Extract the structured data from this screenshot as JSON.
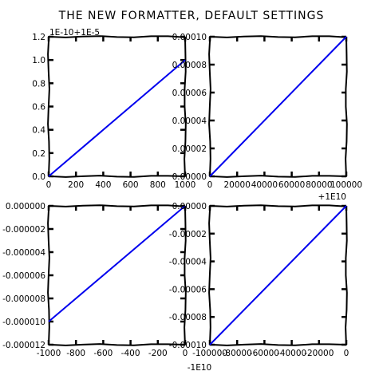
{
  "figure": {
    "title": "THE NEW FORMATTER, DEFAULT SETTINGS"
  },
  "chart_data": [
    {
      "type": "line",
      "panel": "top-left",
      "xlim": [
        0,
        1000
      ],
      "ylim": [
        0,
        1.2
      ],
      "x_ticks": [
        "0",
        "200",
        "400",
        "600",
        "800",
        "1000"
      ],
      "y_ticks": [
        "0.0",
        "0.2",
        "0.4",
        "0.6",
        "0.8",
        "1.0",
        "1.2"
      ],
      "y_offset_label": "1E-10+1E-5",
      "series": [
        {
          "x": [
            0,
            1000
          ],
          "y": [
            0,
            1.0
          ],
          "color": "#0000ee"
        }
      ]
    },
    {
      "type": "line",
      "panel": "top-right",
      "xlim": [
        0,
        100000
      ],
      "ylim": [
        0,
        0.0001
      ],
      "x_ticks": [
        "0",
        "20000",
        "40000",
        "60000",
        "80000",
        "100000"
      ],
      "y_ticks": [
        "0.00000",
        "0.00002",
        "0.00004",
        "0.00006",
        "0.00008",
        "0.00010"
      ],
      "x_offset_label": "+1E10",
      "series": [
        {
          "x": [
            0,
            100000
          ],
          "y": [
            0,
            0.0001
          ],
          "color": "#0000ee"
        }
      ]
    },
    {
      "type": "line",
      "panel": "bottom-left",
      "xlim": [
        -1000,
        0
      ],
      "ylim": [
        -1.2e-05,
        0
      ],
      "x_ticks": [
        "-1000",
        "-800",
        "-600",
        "-400",
        "-200",
        "0"
      ],
      "y_ticks": [
        "-0.000012",
        "-0.000010",
        "-0.000008",
        "-0.000006",
        "-0.000004",
        "-0.000002",
        "0.000000"
      ],
      "series": [
        {
          "x": [
            -1000,
            0
          ],
          "y": [
            -1e-05,
            0
          ],
          "color": "#0000ee"
        }
      ]
    },
    {
      "type": "line",
      "panel": "bottom-right",
      "xlim": [
        -100000,
        0
      ],
      "ylim": [
        -0.0001,
        0
      ],
      "x_ticks": [
        "-100000",
        "-80000",
        "-60000",
        "-40000",
        "-20000",
        "0"
      ],
      "y_ticks": [
        "-0.00010",
        "-0.00008",
        "-0.00006",
        "-0.00004",
        "-0.00002",
        "0.00000"
      ],
      "x_offset_label": "-1E10",
      "series": [
        {
          "x": [
            -100000,
            0
          ],
          "y": [
            -0.0001,
            0
          ],
          "color": "#0000ee"
        }
      ]
    }
  ]
}
